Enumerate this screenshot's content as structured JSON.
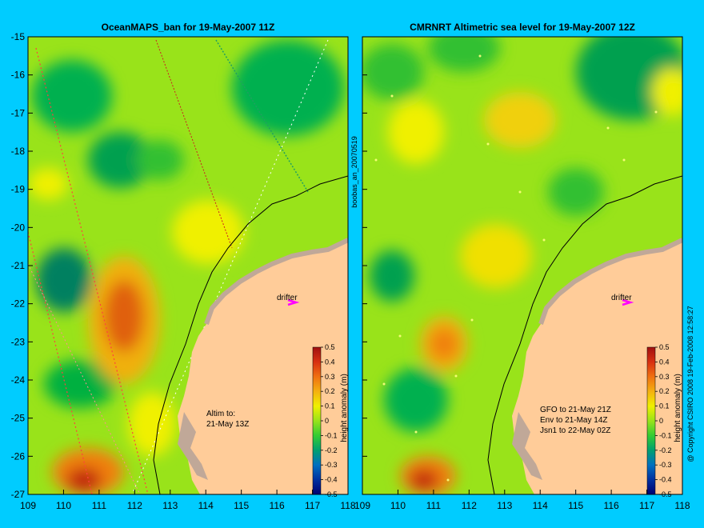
{
  "left_panel": {
    "title": "OceanMAPS_ban for 19-May-2007 11Z",
    "side_label": "boobas_an_20070519",
    "drifter_label": "drifter",
    "note_lines": [
      "Altim to:",
      "21-May 13Z"
    ],
    "colorbar_label": "height anomaly (m)"
  },
  "right_panel": {
    "title": "CMRNRT Altimetric sea level  for 19-May-2007 12Z",
    "side_label": "@ Copyright CSIRO 2008   19-Feb-2008 12:58:27",
    "drifter_label": "drifter",
    "note_lines": [
      "GFO to 21-May 21Z",
      "Env to 21-May 14Z",
      "Jsn1 to 22-May 02Z"
    ],
    "colorbar_label": "height anomaly (m)"
  },
  "x_ticks": [
    "109",
    "110",
    "111",
    "112",
    "113",
    "114",
    "115",
    "116",
    "117",
    "118"
  ],
  "y_ticks": [
    "-15",
    "-16",
    "-17",
    "-18",
    "-19",
    "-20",
    "-21",
    "-22",
    "-23",
    "-24",
    "-25",
    "-26",
    "-27"
  ],
  "colorbar_ticks": [
    "0.5",
    "0.4",
    "0.3",
    "0.2",
    "0.1",
    "0",
    "-0.1",
    "-0.2",
    "-0.3",
    "-0.4",
    "-0.5"
  ],
  "colors": {
    "background": "#00ccff",
    "land": "#ffcc99",
    "island": "#c0a898",
    "ocean_base": "#99e31a",
    "drifter_marker": "#ff00ff"
  }
}
